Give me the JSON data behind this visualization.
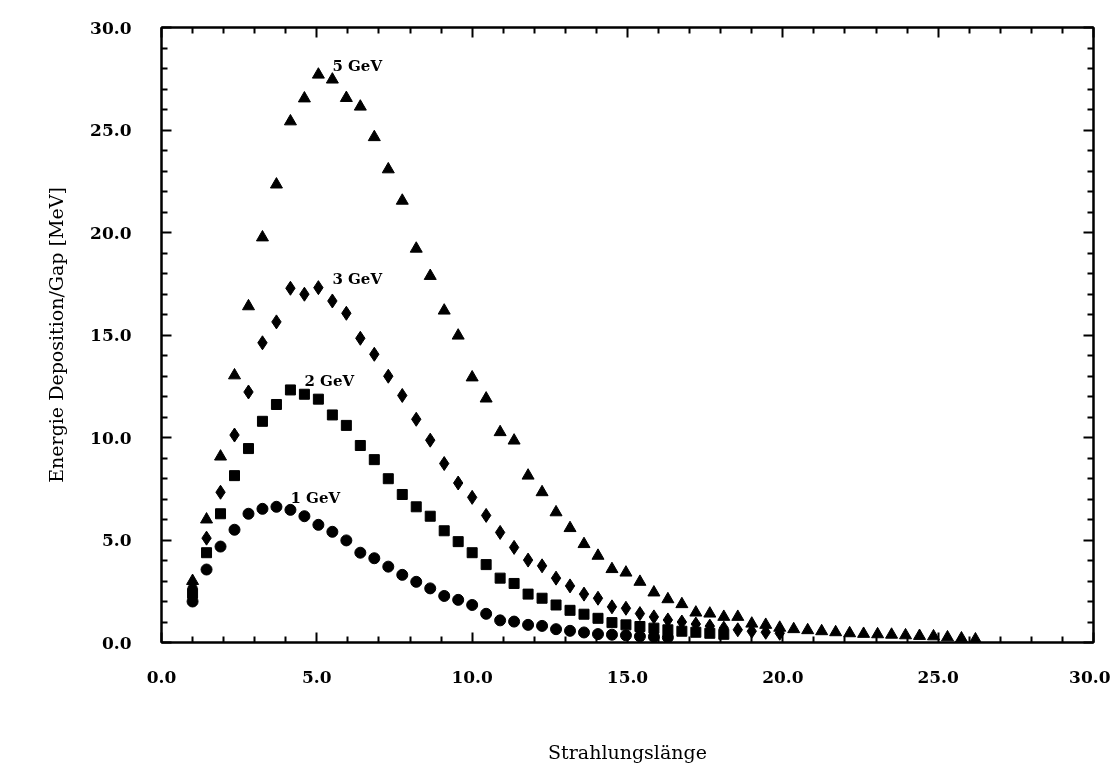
{
  "chart_data": {
    "type": "scatter",
    "xlabel": "Strahlungslänge",
    "ylabel": "Energie Deposition/Gap [MeV]",
    "xlim": [
      0,
      30
    ],
    "ylim": [
      0,
      30
    ],
    "xticks": [
      {
        "value": 0,
        "label": "0.0"
      },
      {
        "value": 1,
        "label": null
      },
      {
        "value": 2,
        "label": null
      },
      {
        "value": 3,
        "label": null
      },
      {
        "value": 4,
        "label": null
      },
      {
        "value": 5,
        "label": "5.0"
      },
      {
        "value": 6,
        "label": null
      },
      {
        "value": 7,
        "label": null
      },
      {
        "value": 8,
        "label": null
      },
      {
        "value": 9,
        "label": null
      },
      {
        "value": 10,
        "label": "10.0"
      },
      {
        "value": 11,
        "label": null
      },
      {
        "value": 12,
        "label": null
      },
      {
        "value": 13,
        "label": null
      },
      {
        "value": 14,
        "label": null
      },
      {
        "value": 15,
        "label": "15.0"
      },
      {
        "value": 16,
        "label": null
      },
      {
        "value": 17,
        "label": null
      },
      {
        "value": 18,
        "label": null
      },
      {
        "value": 19,
        "label": null
      },
      {
        "value": 20,
        "label": "20.0"
      },
      {
        "value": 21,
        "label": null
      },
      {
        "value": 22,
        "label": null
      },
      {
        "value": 23,
        "label": null
      },
      {
        "value": 24,
        "label": null
      },
      {
        "value": 25,
        "label": "25.0"
      },
      {
        "value": 26,
        "label": null
      },
      {
        "value": 27,
        "label": null
      },
      {
        "value": 28,
        "label": null
      },
      {
        "value": 29,
        "label": null
      },
      {
        "value": 30,
        "label": "30.0"
      }
    ],
    "yticks": [
      {
        "value": 0,
        "label": "0.0"
      },
      {
        "value": 1,
        "label": null
      },
      {
        "value": 2,
        "label": null
      },
      {
        "value": 3,
        "label": null
      },
      {
        "value": 4,
        "label": null
      },
      {
        "value": 5,
        "label": "5.0"
      },
      {
        "value": 6,
        "label": null
      },
      {
        "value": 7,
        "label": null
      },
      {
        "value": 8,
        "label": null
      },
      {
        "value": 9,
        "label": null
      },
      {
        "value": 10,
        "label": "10.0"
      },
      {
        "value": 11,
        "label": null
      },
      {
        "value": 12,
        "label": null
      },
      {
        "value": 13,
        "label": null
      },
      {
        "value": 14,
        "label": null
      },
      {
        "value": 15,
        "label": "15.0"
      },
      {
        "value": 16,
        "label": null
      },
      {
        "value": 17,
        "label": null
      },
      {
        "value": 18,
        "label": null
      },
      {
        "value": 19,
        "label": null
      },
      {
        "value": 20,
        "label": "20.0"
      },
      {
        "value": 21,
        "label": null
      },
      {
        "value": 22,
        "label": null
      },
      {
        "value": 23,
        "label": null
      },
      {
        "value": 24,
        "label": null
      },
      {
        "value": 25,
        "label": "25.0"
      },
      {
        "value": 26,
        "label": null
      },
      {
        "value": 27,
        "label": null
      },
      {
        "value": 28,
        "label": null
      },
      {
        "value": 29,
        "label": null
      },
      {
        "value": 30,
        "label": "30.0"
      }
    ],
    "grid": false,
    "legend": false,
    "x": [
      1.0,
      1.45,
      1.9,
      2.35,
      2.8,
      3.25,
      3.7,
      4.15,
      4.6,
      5.05,
      5.5,
      5.95,
      6.4,
      6.85,
      7.3,
      7.75,
      8.2,
      8.65,
      9.1,
      9.55,
      10.0,
      10.45,
      10.9,
      11.35,
      11.8,
      12.25,
      12.7,
      13.15,
      13.6,
      14.05,
      14.5,
      14.95,
      15.4,
      15.85,
      16.3,
      16.75,
      17.2,
      17.65,
      18.1,
      18.55,
      19.0,
      19.45,
      19.9,
      20.35,
      20.8,
      21.25,
      21.7,
      22.15,
      22.6,
      23.05,
      23.5,
      23.95,
      24.4,
      24.85,
      25.3,
      25.75,
      26.2
    ],
    "series": [
      {
        "name": "1 GeV",
        "color": "#000000",
        "marker": "circle",
        "values": [
          2.0,
          3.56,
          4.68,
          5.5,
          6.28,
          6.52,
          6.62,
          6.47,
          6.16,
          5.74,
          5.4,
          4.98,
          4.38,
          4.11,
          3.7,
          3.3,
          2.96,
          2.64,
          2.27,
          2.08,
          1.83,
          1.4,
          1.08,
          1.02,
          0.86,
          0.81,
          0.65,
          0.57,
          0.49,
          0.41,
          0.38,
          0.35,
          0.3,
          0.28,
          0.25,
          null,
          null,
          null,
          null,
          null,
          null,
          null,
          null,
          null,
          null,
          null,
          null,
          null,
          null,
          null,
          null,
          null,
          null,
          null,
          null,
          null,
          null
        ]
      },
      {
        "name": "2 GeV",
        "color": "#000000",
        "marker": "square",
        "values": [
          2.4,
          4.38,
          6.28,
          8.14,
          9.46,
          10.79,
          11.61,
          12.32,
          12.11,
          11.87,
          11.1,
          10.59,
          9.61,
          8.92,
          7.99,
          7.22,
          6.62,
          6.16,
          5.45,
          4.92,
          4.38,
          3.8,
          3.14,
          2.88,
          2.36,
          2.16,
          1.83,
          1.57,
          1.38,
          1.18,
          0.97,
          0.86,
          0.78,
          0.7,
          0.62,
          0.55,
          0.5,
          0.45,
          0.4,
          null,
          null,
          null,
          null,
          null,
          null,
          null,
          null,
          null,
          null,
          null,
          null,
          null,
          null,
          null,
          null,
          null,
          null
        ]
      },
      {
        "name": "3 GeV",
        "color": "#000000",
        "marker": "diamond",
        "values": [
          2.7,
          5.09,
          7.33,
          10.12,
          12.22,
          14.62,
          15.64,
          17.28,
          16.99,
          17.31,
          16.66,
          16.06,
          14.84,
          14.06,
          12.99,
          12.05,
          10.89,
          9.87,
          8.73,
          7.78,
          7.08,
          6.2,
          5.37,
          4.64,
          4.02,
          3.74,
          3.14,
          2.76,
          2.36,
          2.16,
          1.74,
          1.67,
          1.41,
          1.25,
          1.1,
          1.0,
          0.9,
          0.8,
          0.7,
          0.62,
          0.55,
          0.5,
          0.45,
          null,
          null,
          null,
          null,
          null,
          null,
          null,
          null,
          null,
          null,
          null,
          null,
          null,
          null
        ]
      },
      {
        "name": "5 GeV",
        "color": "#000000",
        "marker": "triangle",
        "values": [
          3.0,
          6.0,
          9.07,
          13.03,
          16.4,
          19.76,
          22.34,
          25.42,
          26.54,
          27.7,
          27.46,
          26.56,
          26.14,
          24.65,
          23.08,
          21.55,
          19.21,
          17.88,
          16.19,
          14.97,
          12.93,
          11.9,
          10.26,
          9.85,
          8.14,
          7.33,
          6.35,
          5.58,
          4.8,
          4.23,
          3.58,
          3.41,
          2.96,
          2.44,
          2.11,
          1.87,
          1.46,
          1.41,
          1.25,
          1.25,
          0.92,
          0.86,
          0.72,
          0.65,
          0.6,
          0.55,
          0.5,
          0.45,
          0.42,
          0.4,
          0.38,
          0.35,
          0.32,
          0.3,
          0.25,
          0.2,
          0.15
        ]
      }
    ]
  }
}
